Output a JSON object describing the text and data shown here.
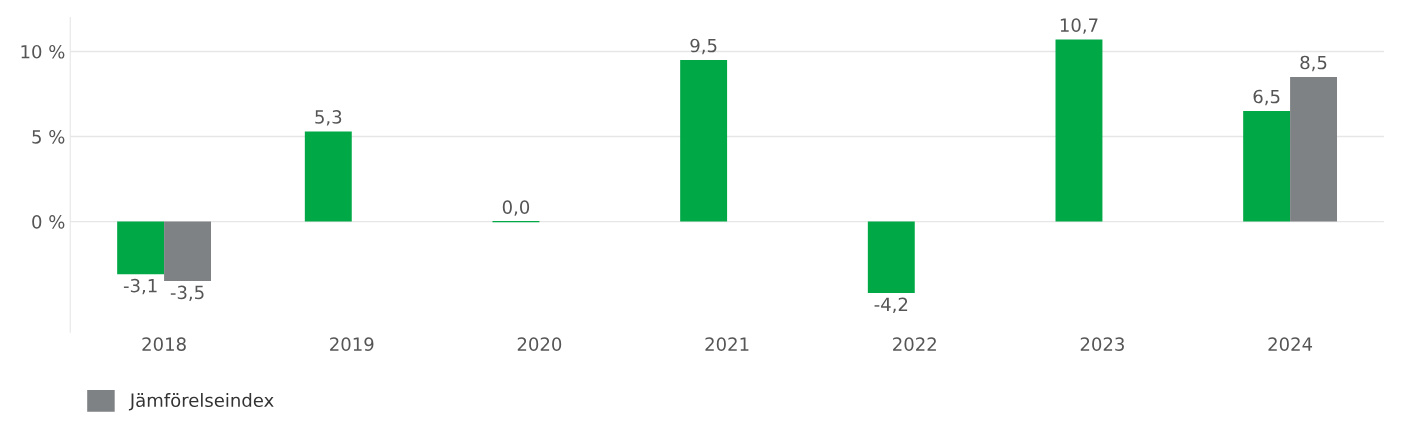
{
  "chart_data": {
    "type": "bar",
    "categories": [
      "2018",
      "2019",
      "2020",
      "2021",
      "2022",
      "2023",
      "2024"
    ],
    "series": [
      {
        "color": "#00a846",
        "values": [
          -3.1,
          5.3,
          0.0,
          9.5,
          -4.2,
          10.7,
          6.5
        ],
        "value_labels": [
          "-3,1",
          "5,3",
          "0,0",
          "9,5",
          "-4,2",
          "10,7",
          "6,5"
        ]
      },
      {
        "name": "Jämförelseindex",
        "color": "#7f8285",
        "values": [
          -3.5,
          null,
          null,
          null,
          null,
          null,
          8.5
        ],
        "value_labels": [
          "-3,5",
          null,
          null,
          null,
          null,
          null,
          "8,5"
        ]
      }
    ],
    "ylim": [
      -6.5,
      12
    ],
    "yticks": [
      {
        "value": 0,
        "label": "0 %"
      },
      {
        "value": 5,
        "label": "5 %"
      },
      {
        "value": 10,
        "label": "10 %"
      }
    ],
    "grid": "y",
    "legend": "bottom left"
  }
}
